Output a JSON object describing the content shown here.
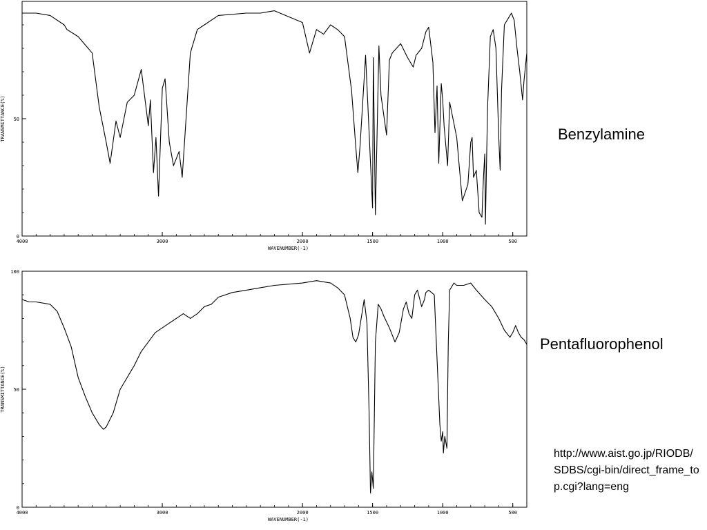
{
  "chart_data": [
    {
      "type": "line",
      "title": "",
      "compound_label": "Benzylamine",
      "xlabel": "WAVENUMBER(-1)",
      "ylabel": "TRANSMITTANCE(%)",
      "xlim": [
        4000,
        400
      ],
      "ylim": [
        0,
        100
      ],
      "x_ticks": [
        4000,
        3000,
        2000,
        1500,
        1000,
        500
      ],
      "y_ticks": [
        0,
        50
      ],
      "grid": false,
      "x": [
        4000,
        3900,
        3800,
        3700,
        3680,
        3600,
        3500,
        3450,
        3400,
        3372,
        3330,
        3300,
        3250,
        3200,
        3150,
        3100,
        3085,
        3063,
        3045,
        3027,
        3000,
        2980,
        2950,
        2920,
        2880,
        2858,
        2800,
        2750,
        2700,
        2600,
        2400,
        2300,
        2200,
        2000,
        1950,
        1900,
        1850,
        1800,
        1750,
        1700,
        1650,
        1620,
        1605,
        1590,
        1550,
        1500,
        1495,
        1480,
        1455,
        1440,
        1400,
        1380,
        1360,
        1300,
        1250,
        1210,
        1190,
        1150,
        1120,
        1100,
        1070,
        1055,
        1040,
        1028,
        1010,
        1000,
        990,
        965,
        950,
        900,
        860,
        820,
        800,
        790,
        780,
        760,
        740,
        720,
        710,
        700,
        695,
        680,
        660,
        640,
        620,
        600,
        590,
        580,
        560,
        530,
        510,
        490,
        470,
        450,
        430,
        420,
        400
      ],
      "y": [
        95,
        95,
        94,
        90,
        88,
        85,
        78,
        55,
        40,
        31,
        49,
        42,
        57,
        60,
        71,
        47,
        58,
        27,
        42,
        17,
        63,
        67,
        40,
        30,
        36,
        25,
        78,
        88,
        90,
        94,
        95,
        95,
        96,
        91,
        78,
        88,
        86,
        90,
        88,
        85,
        62,
        38,
        27,
        38,
        77,
        12,
        76,
        9,
        81,
        60,
        43,
        75,
        78,
        82,
        76,
        72,
        77,
        80,
        87,
        89,
        74,
        44,
        64,
        31,
        65,
        58,
        47,
        30,
        57,
        42,
        15,
        22,
        40,
        42,
        25,
        28,
        10,
        8,
        24,
        35,
        5,
        54,
        85,
        88,
        80,
        42,
        28,
        62,
        90,
        93,
        95,
        92,
        80,
        70,
        58,
        66,
        78
      ]
    },
    {
      "type": "line",
      "title": "",
      "compound_label": "Pentafluorophenol",
      "xlabel": "WAVENUMBER(-1)",
      "ylabel": "TRANSMITTANCE(%)",
      "xlim": [
        4000,
        400
      ],
      "ylim": [
        0,
        100
      ],
      "x_ticks": [
        4000,
        3000,
        2000,
        1500,
        1000,
        500
      ],
      "y_ticks": [
        0,
        50,
        100
      ],
      "grid": false,
      "x": [
        4000,
        3950,
        3900,
        3800,
        3750,
        3700,
        3650,
        3600,
        3550,
        3500,
        3450,
        3420,
        3400,
        3350,
        3300,
        3250,
        3200,
        3150,
        3100,
        3050,
        3000,
        2950,
        2900,
        2850,
        2800,
        2750,
        2700,
        2650,
        2600,
        2500,
        2400,
        2300,
        2200,
        2000,
        1900,
        1800,
        1750,
        1700,
        1660,
        1640,
        1620,
        1600,
        1560,
        1540,
        1525,
        1515,
        1505,
        1495,
        1480,
        1460,
        1440,
        1420,
        1380,
        1340,
        1310,
        1280,
        1260,
        1240,
        1220,
        1200,
        1180,
        1150,
        1130,
        1120,
        1100,
        1060,
        1020,
        1010,
        1000,
        995,
        985,
        970,
        960,
        950,
        920,
        900,
        850,
        800,
        760,
        700,
        650,
        600,
        560,
        520,
        500,
        480,
        460,
        440,
        420,
        400
      ],
      "y": [
        88,
        87,
        87,
        86,
        83,
        76,
        68,
        55,
        47,
        40,
        35,
        33,
        34,
        40,
        50,
        55,
        60,
        66,
        70,
        74,
        76,
        78,
        80,
        82,
        80,
        82,
        85,
        86,
        89,
        91,
        92,
        93,
        94,
        95,
        96,
        95,
        93,
        90,
        80,
        72,
        70,
        73,
        88,
        78,
        40,
        6,
        15,
        8,
        70,
        86,
        84,
        81,
        76,
        70,
        74,
        84,
        87,
        82,
        80,
        90,
        92,
        85,
        88,
        91,
        92,
        90,
        35,
        28,
        32,
        23,
        30,
        25,
        70,
        92,
        95,
        94,
        94,
        95,
        92,
        88,
        85,
        80,
        75,
        72,
        74,
        77,
        74,
        72,
        71,
        69
      ]
    }
  ],
  "source_url": "http://www.aist.go.jp/RIODB/SDBS/cgi-bin/direct_frame_top.cgi?lang=eng"
}
